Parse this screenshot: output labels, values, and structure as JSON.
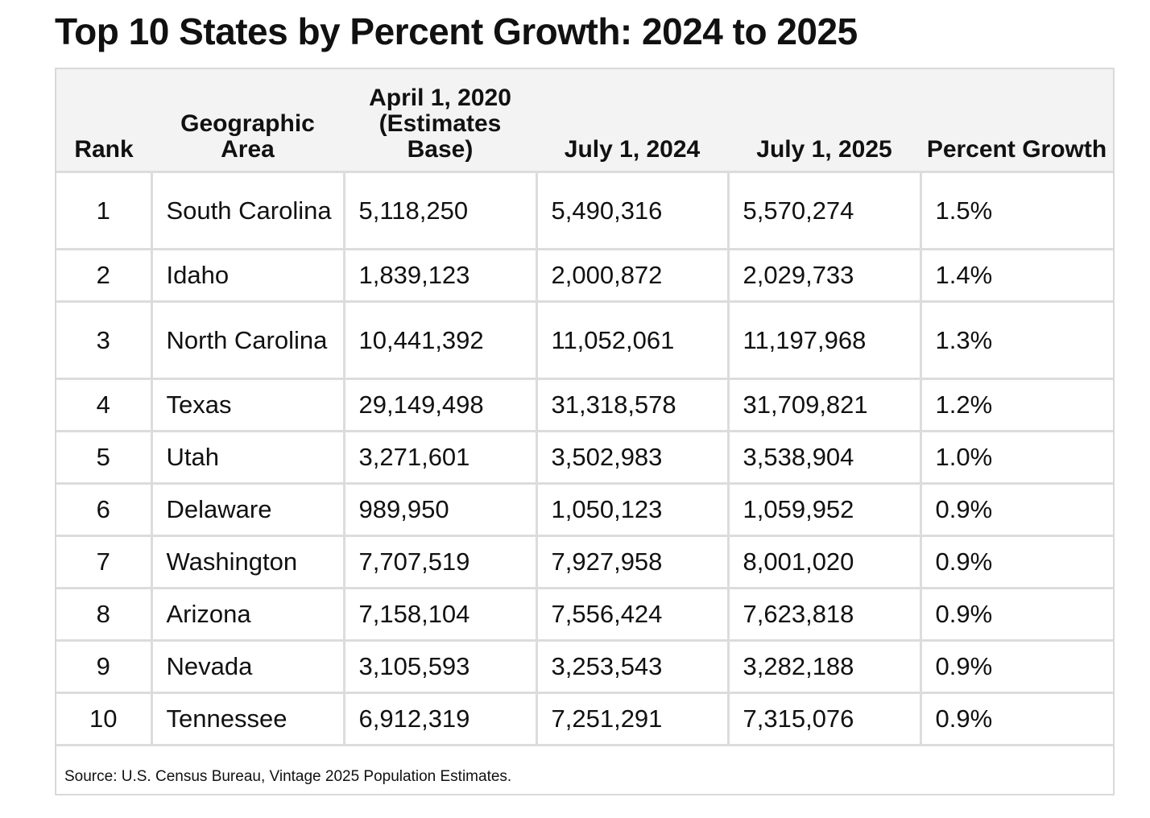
{
  "title": "Top 10 States by Percent Growth: 2024 to 2025",
  "table": {
    "headers": {
      "rank": "Rank",
      "area": "Geographic Area",
      "base": "April 1, 2020 (Estimates Base)",
      "y2024": "July 1, 2024",
      "y2025": "July 1, 2025",
      "growth": "Percent Growth"
    },
    "rows": [
      {
        "rank": "1",
        "area": "South Carolina",
        "base": "5,118,250",
        "y2024": "5,490,316",
        "y2025": "5,570,274",
        "growth": "1.5%"
      },
      {
        "rank": "2",
        "area": "Idaho",
        "base": "1,839,123",
        "y2024": "2,000,872",
        "y2025": "2,029,733",
        "growth": "1.4%"
      },
      {
        "rank": "3",
        "area": "North Carolina",
        "base": "10,441,392",
        "y2024": "11,052,061",
        "y2025": "11,197,968",
        "growth": "1.3%"
      },
      {
        "rank": "4",
        "area": "Texas",
        "base": "29,149,498",
        "y2024": "31,318,578",
        "y2025": "31,709,821",
        "growth": "1.2%"
      },
      {
        "rank": "5",
        "area": "Utah",
        "base": "3,271,601",
        "y2024": "3,502,983",
        "y2025": "3,538,904",
        "growth": "1.0%"
      },
      {
        "rank": "6",
        "area": "Delaware",
        "base": "989,950",
        "y2024": "1,050,123",
        "y2025": "1,059,952",
        "growth": "0.9%"
      },
      {
        "rank": "7",
        "area": "Washington",
        "base": "7,707,519",
        "y2024": "7,927,958",
        "y2025": "8,001,020",
        "growth": "0.9%"
      },
      {
        "rank": "8",
        "area": "Arizona",
        "base": "7,158,104",
        "y2024": "7,556,424",
        "y2025": "7,623,818",
        "growth": "0.9%"
      },
      {
        "rank": "9",
        "area": "Nevada",
        "base": "3,105,593",
        "y2024": "3,253,543",
        "y2025": "3,282,188",
        "growth": "0.9%"
      },
      {
        "rank": "10",
        "area": "Tennessee",
        "base": "6,912,319",
        "y2024": "7,251,291",
        "y2025": "7,315,076",
        "growth": "0.9%"
      }
    ]
  },
  "source": "Source: U.S. Census Bureau, Vintage 2025 Population Estimates."
}
